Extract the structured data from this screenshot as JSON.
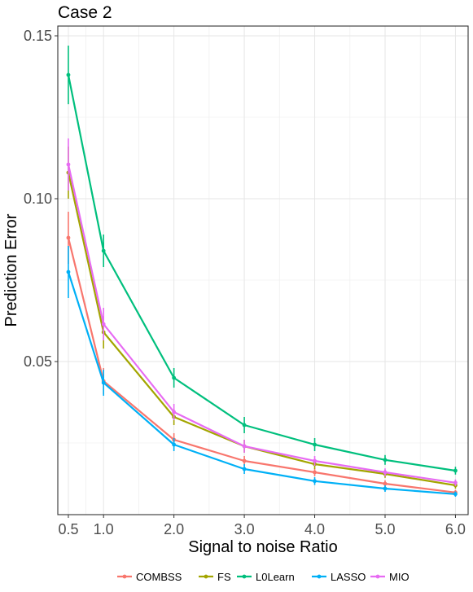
{
  "chart_data": {
    "type": "line",
    "title": "Case 2",
    "xlabel": "Signal to noise Ratio",
    "ylabel": "Prediction Error",
    "x": [
      0.5,
      1.0,
      2.0,
      3.0,
      4.0,
      5.0,
      6.0
    ],
    "x_tick_labels": [
      "0.5",
      "1.0",
      "2.0",
      "3.0",
      "4.0",
      "5.0",
      "6.0"
    ],
    "xlim": [
      0.35,
      6.18
    ],
    "ylim": [
      0.003,
      0.153
    ],
    "y_ticks": [
      0.05,
      0.1,
      0.15
    ],
    "y_tick_labels": [
      "0.05",
      "0.10",
      "0.15"
    ],
    "grid": true,
    "legend_position": "bottom",
    "series": [
      {
        "name": "COMBSS",
        "color": "#F8766D",
        "values": [
          0.088,
          0.044,
          0.026,
          0.0195,
          0.016,
          0.0125,
          0.0098
        ],
        "errors": [
          0.008,
          0.004,
          0.002,
          0.0015,
          0.0012,
          0.001,
          0.0008
        ]
      },
      {
        "name": "FS",
        "color": "#A3A500",
        "values": [
          0.108,
          0.059,
          0.033,
          0.024,
          0.0185,
          0.0155,
          0.012
        ],
        "errors": [
          0.008,
          0.005,
          0.0025,
          0.002,
          0.0015,
          0.0012,
          0.001
        ]
      },
      {
        "name": "L0Learn",
        "color": "#00BF7D",
        "values": [
          0.138,
          0.084,
          0.045,
          0.0305,
          0.0245,
          0.0198,
          0.0165
        ],
        "errors": [
          0.009,
          0.005,
          0.003,
          0.0025,
          0.002,
          0.0015,
          0.0012
        ]
      },
      {
        "name": "LASSO",
        "color": "#00B0F6",
        "values": [
          0.0775,
          0.0435,
          0.0245,
          0.017,
          0.0133,
          0.011,
          0.0093
        ],
        "errors": [
          0.008,
          0.004,
          0.002,
          0.0015,
          0.0012,
          0.001,
          0.0008
        ]
      },
      {
        "name": "MIO",
        "color": "#E76BF3",
        "values": [
          0.1105,
          0.0615,
          0.0345,
          0.024,
          0.0195,
          0.016,
          0.0128
        ],
        "errors": [
          0.008,
          0.005,
          0.0025,
          0.002,
          0.0015,
          0.0012,
          0.001
        ]
      }
    ]
  }
}
